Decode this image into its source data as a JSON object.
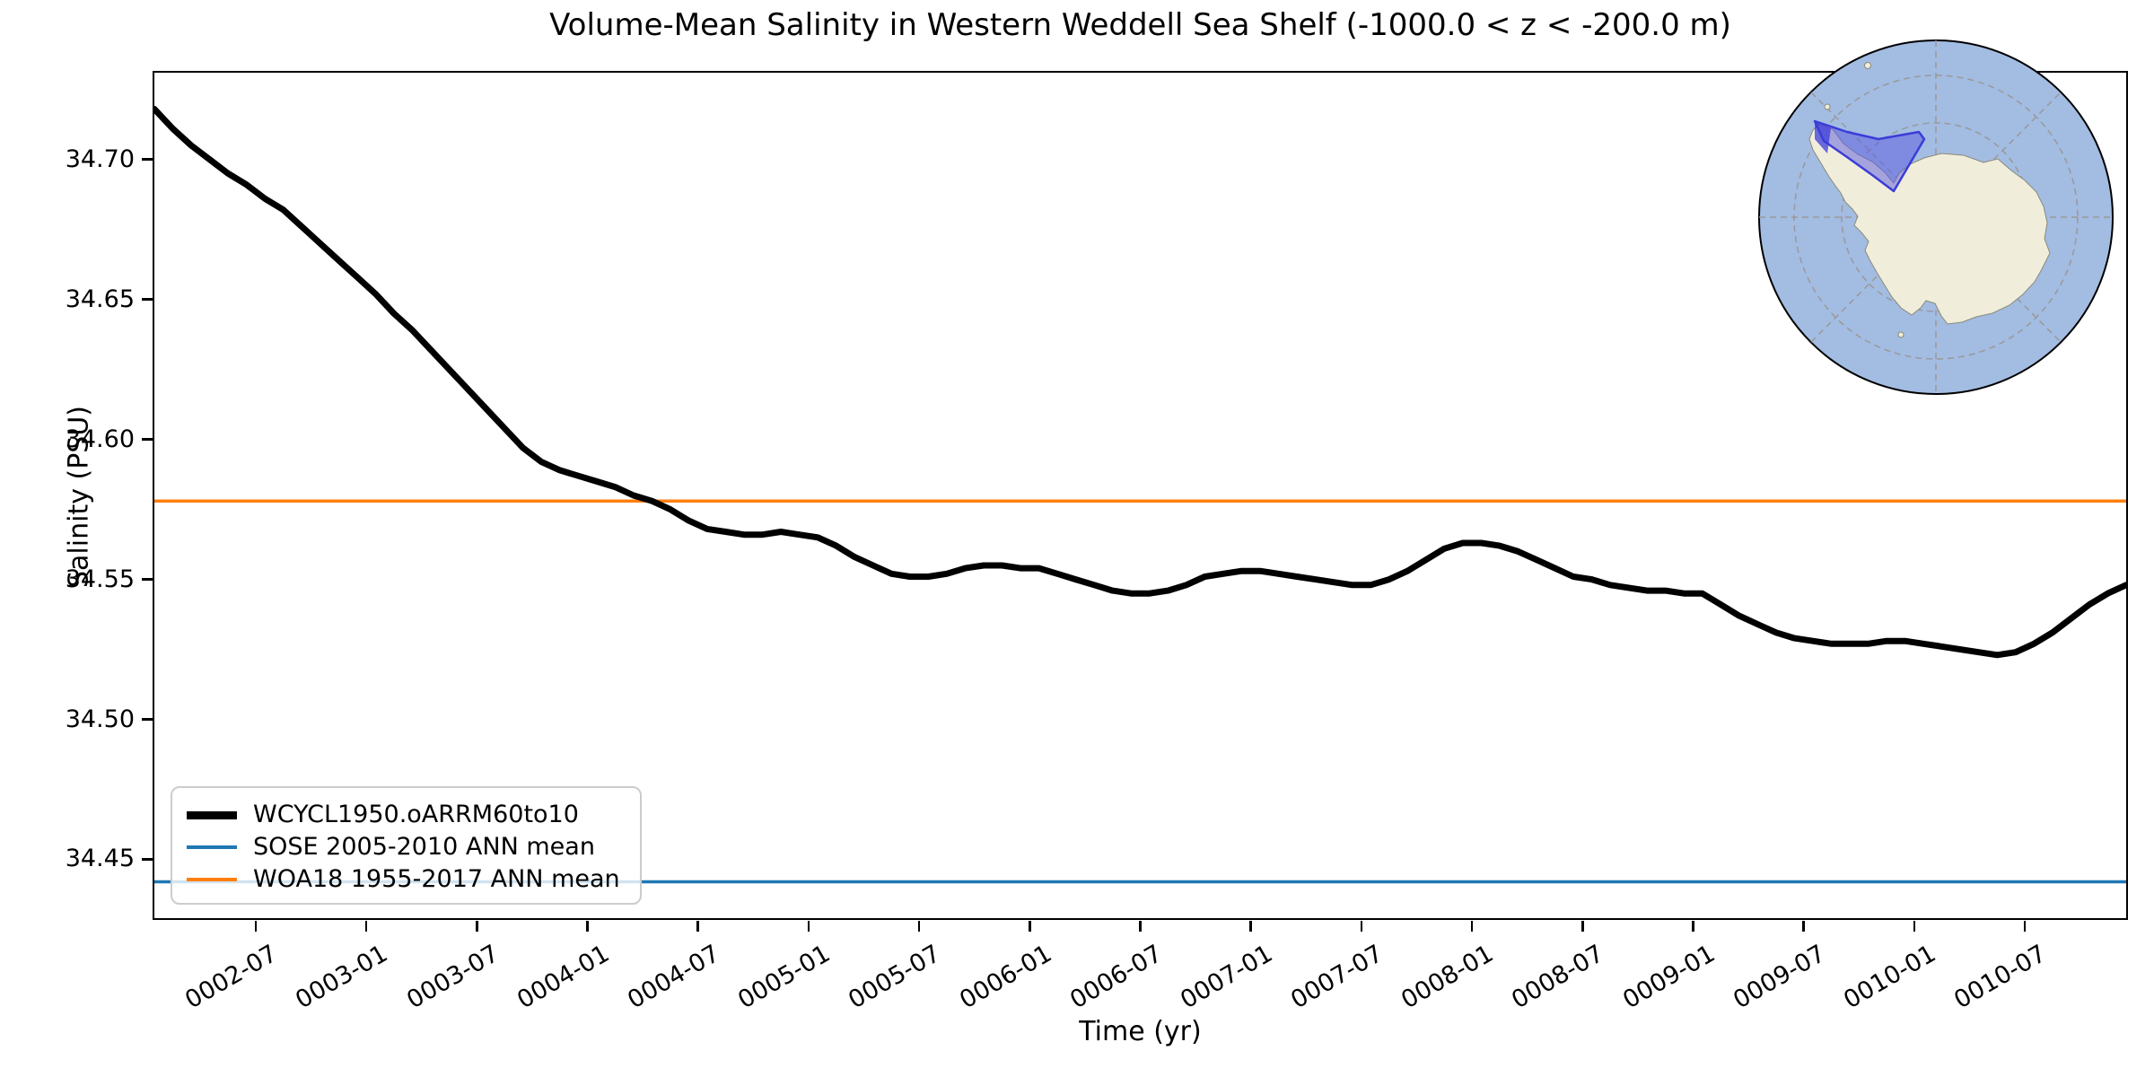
{
  "figure": {
    "title": "Volume-Mean Salinity in Western Weddell Sea Shelf (-1000.0 < z < -200.0 m)",
    "xlabel": "Time (yr)",
    "ylabel": "Salinity (PSU)"
  },
  "chart_data": {
    "type": "line",
    "title": "Volume-Mean Salinity in Western Weddell Sea Shelf (-1000.0 < z < -200.0 m)",
    "xlabel": "Time (yr)",
    "ylabel": "Salinity (PSU)",
    "grid": false,
    "legend_position": "lower left",
    "ylim": [
      34.429,
      34.731
    ],
    "y_ticks": [
      34.45,
      34.5,
      34.55,
      34.6,
      34.65,
      34.7
    ],
    "y_tick_labels": [
      "34.45",
      "34.50",
      "34.55",
      "34.60",
      "34.65",
      "34.70"
    ],
    "x_tick_labels": [
      "0002-07",
      "0003-01",
      "0003-07",
      "0004-01",
      "0004-07",
      "0005-01",
      "0005-07",
      "0006-01",
      "0006-07",
      "0007-01",
      "0007-07",
      "0008-01",
      "0008-07",
      "0009-01",
      "0009-07",
      "0010-01",
      "0010-07"
    ],
    "x_start_month": "0002-01",
    "x_end_month": "0010-12",
    "x_sampling": "monthly mid-month values, 108 points",
    "series": [
      {
        "name": "WCYCL1950.oARRM60to10",
        "type": "line",
        "color": "#000000",
        "linewidth": 7,
        "values": [
          34.718,
          34.711,
          34.705,
          34.7,
          34.695,
          34.691,
          34.686,
          34.682,
          34.676,
          34.67,
          34.664,
          34.658,
          34.652,
          34.645,
          34.639,
          34.632,
          34.625,
          34.618,
          34.611,
          34.604,
          34.597,
          34.592,
          34.589,
          34.587,
          34.585,
          34.583,
          34.58,
          34.578,
          34.575,
          34.571,
          34.568,
          34.567,
          34.566,
          34.566,
          34.567,
          34.566,
          34.565,
          34.562,
          34.558,
          34.555,
          34.552,
          34.551,
          34.551,
          34.552,
          34.554,
          34.555,
          34.555,
          34.554,
          34.554,
          34.552,
          34.55,
          34.548,
          34.546,
          34.545,
          34.545,
          34.546,
          34.548,
          34.551,
          34.552,
          34.553,
          34.553,
          34.552,
          34.551,
          34.55,
          34.549,
          34.548,
          34.548,
          34.55,
          34.553,
          34.557,
          34.561,
          34.563,
          34.563,
          34.562,
          34.56,
          34.557,
          34.554,
          34.551,
          34.55,
          34.548,
          34.547,
          34.546,
          34.546,
          34.545,
          34.545,
          34.541,
          34.537,
          34.534,
          34.531,
          34.529,
          34.528,
          34.527,
          34.527,
          34.527,
          34.528,
          34.528,
          34.527,
          34.526,
          34.525,
          34.524,
          34.523,
          34.524,
          34.527,
          34.531,
          34.536,
          34.541,
          34.545,
          34.548
        ]
      },
      {
        "name": "SOSE 2005-2010 ANN mean",
        "type": "hline",
        "color": "#1f77b4",
        "linewidth": 3.5,
        "value": 34.442
      },
      {
        "name": "WOA18 1955-2017 ANN mean",
        "type": "hline",
        "color": "#ff7f0e",
        "linewidth": 3.5,
        "value": 34.578
      }
    ]
  },
  "inset_map": {
    "description": "South polar stereographic map of Antarctica with highlighted Western Weddell Sea Shelf region",
    "ocean_color": "#a3bce2",
    "land_color": "#f0eddb",
    "coast_color": "#8a8a78",
    "graticule_color": "#999999",
    "region_fill": "#5a5ae0",
    "region_edge": "#3c3cd8"
  }
}
